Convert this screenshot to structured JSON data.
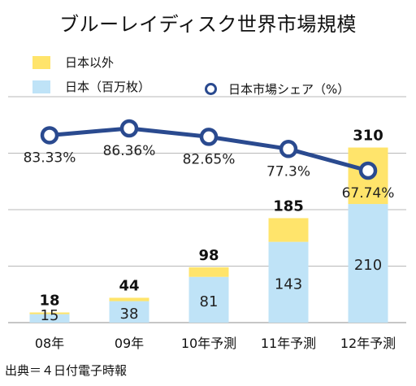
{
  "chart_data": {
    "type": "bar",
    "title": "ブルーレイディスク世界市場規模",
    "categories": [
      "08年",
      "09年",
      "10年予測",
      "11年予測",
      "12年予測"
    ],
    "series": [
      {
        "name": "日本（百万枚）",
        "values": [
          15,
          38,
          81,
          143,
          210
        ],
        "color": "#bfe3f7"
      },
      {
        "name": "日本以外",
        "values": [
          3,
          6,
          17,
          42,
          100
        ],
        "color": "#ffe46b"
      }
    ],
    "totals": [
      "18",
      "44",
      "98",
      "185",
      "310"
    ],
    "line_series": {
      "name": "日本市場シェア（%）",
      "values": [
        83.33,
        86.36,
        82.65,
        77.3,
        67.74
      ],
      "labels": [
        "83.33%",
        "86.36%",
        "82.65%",
        "77.3%",
        "67.74%"
      ],
      "color": "#2a4a8f"
    },
    "ylim": [
      0,
      400
    ],
    "grid": true,
    "legend_position": "top-left"
  },
  "source": "出典＝４日付電子時報"
}
